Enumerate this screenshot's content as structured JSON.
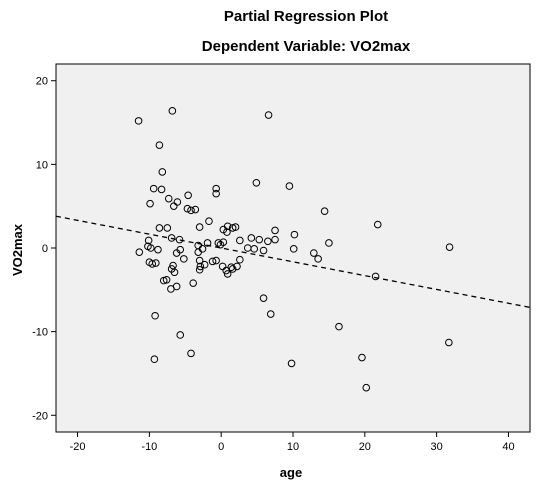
{
  "chart_data": {
    "type": "scatter",
    "title": "Partial Regression Plot",
    "subtitle": "Dependent Variable: VO2max",
    "xlabel": "age",
    "ylabel": "VO2max",
    "xlim": [
      -23,
      43
    ],
    "ylim": [
      -22,
      22
    ],
    "xticks": [
      -20,
      -10,
      0,
      10,
      20,
      30,
      40
    ],
    "yticks": [
      -20,
      -10,
      0,
      10,
      20
    ],
    "grid": false,
    "background": "#f0f0f0",
    "marker": "open-circle",
    "fit_line": {
      "style": "dashed",
      "x": [
        -23,
        43
      ],
      "y": [
        3.8,
        -7.1
      ]
    },
    "points": [
      {
        "x": -11.5,
        "y": 15.2
      },
      {
        "x": -6.8,
        "y": 16.4
      },
      {
        "x": 6.6,
        "y": 15.9
      },
      {
        "x": -8.6,
        "y": 12.3
      },
      {
        "x": -8.2,
        "y": 9.1
      },
      {
        "x": 4.9,
        "y": 7.8
      },
      {
        "x": 9.5,
        "y": 7.4
      },
      {
        "x": -9.4,
        "y": 7.1
      },
      {
        "x": -8.3,
        "y": 7.0
      },
      {
        "x": -0.7,
        "y": 7.1
      },
      {
        "x": -0.7,
        "y": 6.5
      },
      {
        "x": -4.6,
        "y": 6.3
      },
      {
        "x": -7.3,
        "y": 5.9
      },
      {
        "x": -6.1,
        "y": 5.5
      },
      {
        "x": -9.9,
        "y": 5.3
      },
      {
        "x": -6.6,
        "y": 5.0
      },
      {
        "x": -4.7,
        "y": 4.7
      },
      {
        "x": -4.2,
        "y": 4.5
      },
      {
        "x": -3.6,
        "y": 4.6
      },
      {
        "x": 14.4,
        "y": 4.4
      },
      {
        "x": -1.7,
        "y": 3.2
      },
      {
        "x": 0.9,
        "y": 2.6
      },
      {
        "x": -3.0,
        "y": 2.5
      },
      {
        "x": 2.0,
        "y": 2.5
      },
      {
        "x": 21.8,
        "y": 2.8
      },
      {
        "x": -8.6,
        "y": 2.4
      },
      {
        "x": -7.5,
        "y": 2.4
      },
      {
        "x": 0.3,
        "y": 2.2
      },
      {
        "x": 1.6,
        "y": 2.4
      },
      {
        "x": 0.8,
        "y": 1.9
      },
      {
        "x": 7.5,
        "y": 2.1
      },
      {
        "x": 10.2,
        "y": 1.6
      },
      {
        "x": -6.9,
        "y": 1.2
      },
      {
        "x": -5.8,
        "y": 1.0
      },
      {
        "x": 2.6,
        "y": 0.9
      },
      {
        "x": 4.2,
        "y": 1.2
      },
      {
        "x": 5.3,
        "y": 1.0
      },
      {
        "x": 6.5,
        "y": 0.8
      },
      {
        "x": 7.5,
        "y": 1.0
      },
      {
        "x": 15.0,
        "y": 0.6
      },
      {
        "x": -10.1,
        "y": 0.9
      },
      {
        "x": -3.2,
        "y": 0.3
      },
      {
        "x": -1.9,
        "y": 0.6
      },
      {
        "x": -0.4,
        "y": 0.6
      },
      {
        "x": -0.1,
        "y": 0.4
      },
      {
        "x": 0.3,
        "y": 0.7
      },
      {
        "x": -10.2,
        "y": 0.2
      },
      {
        "x": -9.8,
        "y": 0.0
      },
      {
        "x": -5.7,
        "y": -0.2
      },
      {
        "x": -2.6,
        "y": -0.1
      },
      {
        "x": 3.7,
        "y": 0.0
      },
      {
        "x": 4.6,
        "y": -0.1
      },
      {
        "x": 5.9,
        "y": -0.3
      },
      {
        "x": 10.1,
        "y": -0.1
      },
      {
        "x": 31.8,
        "y": 0.1
      },
      {
        "x": -11.4,
        "y": -0.5
      },
      {
        "x": -8.8,
        "y": -0.2
      },
      {
        "x": -6.2,
        "y": -0.6
      },
      {
        "x": -3.2,
        "y": -0.5
      },
      {
        "x": 12.9,
        "y": -0.6
      },
      {
        "x": 13.5,
        "y": -1.3
      },
      {
        "x": -10.0,
        "y": -1.7
      },
      {
        "x": -9.6,
        "y": -1.9
      },
      {
        "x": -9.1,
        "y": -1.8
      },
      {
        "x": -6.7,
        "y": -2.1
      },
      {
        "x": -5.2,
        "y": -1.3
      },
      {
        "x": -3.0,
        "y": -1.5
      },
      {
        "x": -1.2,
        "y": -1.6
      },
      {
        "x": -0.7,
        "y": -1.5
      },
      {
        "x": -6.9,
        "y": -2.5
      },
      {
        "x": -2.9,
        "y": -2.2
      },
      {
        "x": -2.3,
        "y": -2.0
      },
      {
        "x": 0.2,
        "y": -2.2
      },
      {
        "x": 1.4,
        "y": -2.3
      },
      {
        "x": 2.2,
        "y": -2.2
      },
      {
        "x": 2.6,
        "y": -1.4
      },
      {
        "x": -6.5,
        "y": -2.9
      },
      {
        "x": -3.0,
        "y": -2.6
      },
      {
        "x": 0.7,
        "y": -2.7
      },
      {
        "x": 1.6,
        "y": -2.5
      },
      {
        "x": 0.9,
        "y": -3.1
      },
      {
        "x": 21.5,
        "y": -3.4
      },
      {
        "x": -8.0,
        "y": -3.9
      },
      {
        "x": -7.6,
        "y": -3.8
      },
      {
        "x": -3.9,
        "y": -4.2
      },
      {
        "x": -7.0,
        "y": -4.9
      },
      {
        "x": -6.2,
        "y": -4.6
      },
      {
        "x": 5.9,
        "y": -6.0
      },
      {
        "x": -9.2,
        "y": -8.1
      },
      {
        "x": 6.9,
        "y": -7.9
      },
      {
        "x": 16.4,
        "y": -9.4
      },
      {
        "x": -5.7,
        "y": -10.4
      },
      {
        "x": 31.7,
        "y": -11.3
      },
      {
        "x": -4.2,
        "y": -12.6
      },
      {
        "x": 19.6,
        "y": -13.1
      },
      {
        "x": -9.3,
        "y": -13.3
      },
      {
        "x": 9.8,
        "y": -13.8
      },
      {
        "x": 20.2,
        "y": -16.7
      }
    ]
  }
}
